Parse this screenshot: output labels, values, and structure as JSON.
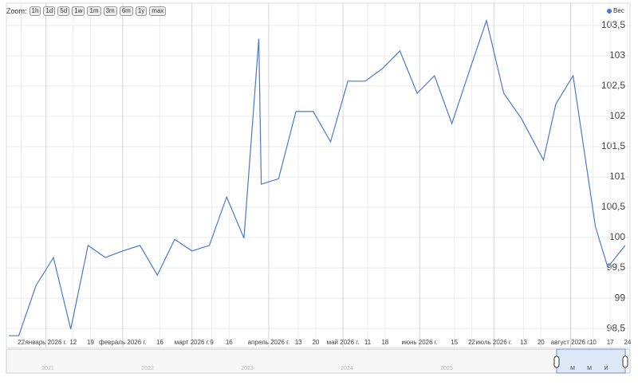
{
  "zoom": {
    "label": "Zoom:",
    "buttons": [
      "1h",
      "1d",
      "5d",
      "1w",
      "1m",
      "3m",
      "6m",
      "1y",
      "max"
    ]
  },
  "chart_data": {
    "type": "line",
    "x": [
      "2025-12-17",
      "2025-12-21",
      "2025-12-28",
      "2026-01-04",
      "2026-01-11",
      "2026-01-18",
      "2026-01-25",
      "2026-02-01",
      "2026-02-08",
      "2026-02-15",
      "2026-02-22",
      "2026-03-01",
      "2026-03-08",
      "2026-03-15",
      "2026-03-22",
      "2026-03-28",
      "2026-03-29",
      "2026-04-05",
      "2026-04-12",
      "2026-04-19",
      "2026-04-26",
      "2026-05-03",
      "2026-05-10",
      "2026-05-17",
      "2026-05-24",
      "2026-05-31",
      "2026-06-07",
      "2026-06-14",
      "2026-06-21",
      "2026-06-28",
      "2026-07-05",
      "2026-07-12",
      "2026-07-21",
      "2026-07-26",
      "2026-08-02",
      "2026-08-11",
      "2026-08-16",
      "2026-08-23"
    ],
    "series": [
      {
        "name": "Вес",
        "color": "#4a78d6",
        "values": [
          98.38,
          98.38,
          99.21,
          99.67,
          98.49,
          99.87,
          99.67,
          99.78,
          99.87,
          99.38,
          99.97,
          99.78,
          99.87,
          100.67,
          99.99,
          103.28,
          100.88,
          100.97,
          102.08,
          102.08,
          101.58,
          102.58,
          102.58,
          102.79,
          103.08,
          102.38,
          102.67,
          101.88,
          102.74,
          103.58,
          102.38,
          101.97,
          101.28,
          102.2,
          102.67,
          100.18,
          99.51,
          99.87
        ]
      }
    ],
    "xlim": [
      "2025-12-16",
      "2026-08-25"
    ],
    "xticks": [
      {
        "value": "2025-12-22",
        "label": "22"
      },
      {
        "value": "2026-01-01",
        "label": "январь 2026 г."
      },
      {
        "value": "2026-01-12",
        "label": "12"
      },
      {
        "value": "2026-01-19",
        "label": "19"
      },
      {
        "value": "2026-02-01",
        "label": "февраль 2026 г."
      },
      {
        "value": "2026-02-16",
        "label": "16"
      },
      {
        "value": "2026-03-01",
        "label": "март 2026 г."
      },
      {
        "value": "2026-03-09",
        "label": "9"
      },
      {
        "value": "2026-03-16",
        "label": "16"
      },
      {
        "value": "2026-04-01",
        "label": "апрель 2026 г."
      },
      {
        "value": "2026-04-13",
        "label": "13"
      },
      {
        "value": "2026-04-20",
        "label": "20"
      },
      {
        "value": "2026-05-01",
        "label": "май 2026 г."
      },
      {
        "value": "2026-05-11",
        "label": "11"
      },
      {
        "value": "2026-05-18",
        "label": "18"
      },
      {
        "value": "2026-06-01",
        "label": "июнь 2026 г."
      },
      {
        "value": "2026-06-15",
        "label": "15"
      },
      {
        "value": "2026-06-22",
        "label": "22"
      },
      {
        "value": "2026-07-01",
        "label": "июль 2026 г."
      },
      {
        "value": "2026-07-13",
        "label": "13"
      },
      {
        "value": "2026-07-20",
        "label": "20"
      },
      {
        "value": "2026-08-01",
        "label": "август 2026 г."
      },
      {
        "value": "2026-08-10",
        "label": "10"
      },
      {
        "value": "2026-08-17",
        "label": "17"
      },
      {
        "value": "2026-08-24",
        "label": "24"
      }
    ],
    "ylim": [
      98.37,
      103.63
    ],
    "yticks": [
      {
        "value": 98.5,
        "label": "98,5"
      },
      99,
      {
        "value": 99.5,
        "label": "99,5"
      },
      100,
      {
        "value": 100.5,
        "label": "100,5"
      },
      101,
      {
        "value": 101.5,
        "label": "101,5"
      },
      102,
      {
        "value": 102.5,
        "label": "102,5"
      },
      103,
      {
        "value": 103.5,
        "label": "103,5"
      }
    ],
    "grid": true,
    "legend": "top-right",
    "navigator_years": [
      "2021",
      "2022",
      "2023",
      "2024",
      "2025"
    ],
    "navigator_months": [
      "М",
      "М",
      "И"
    ]
  }
}
